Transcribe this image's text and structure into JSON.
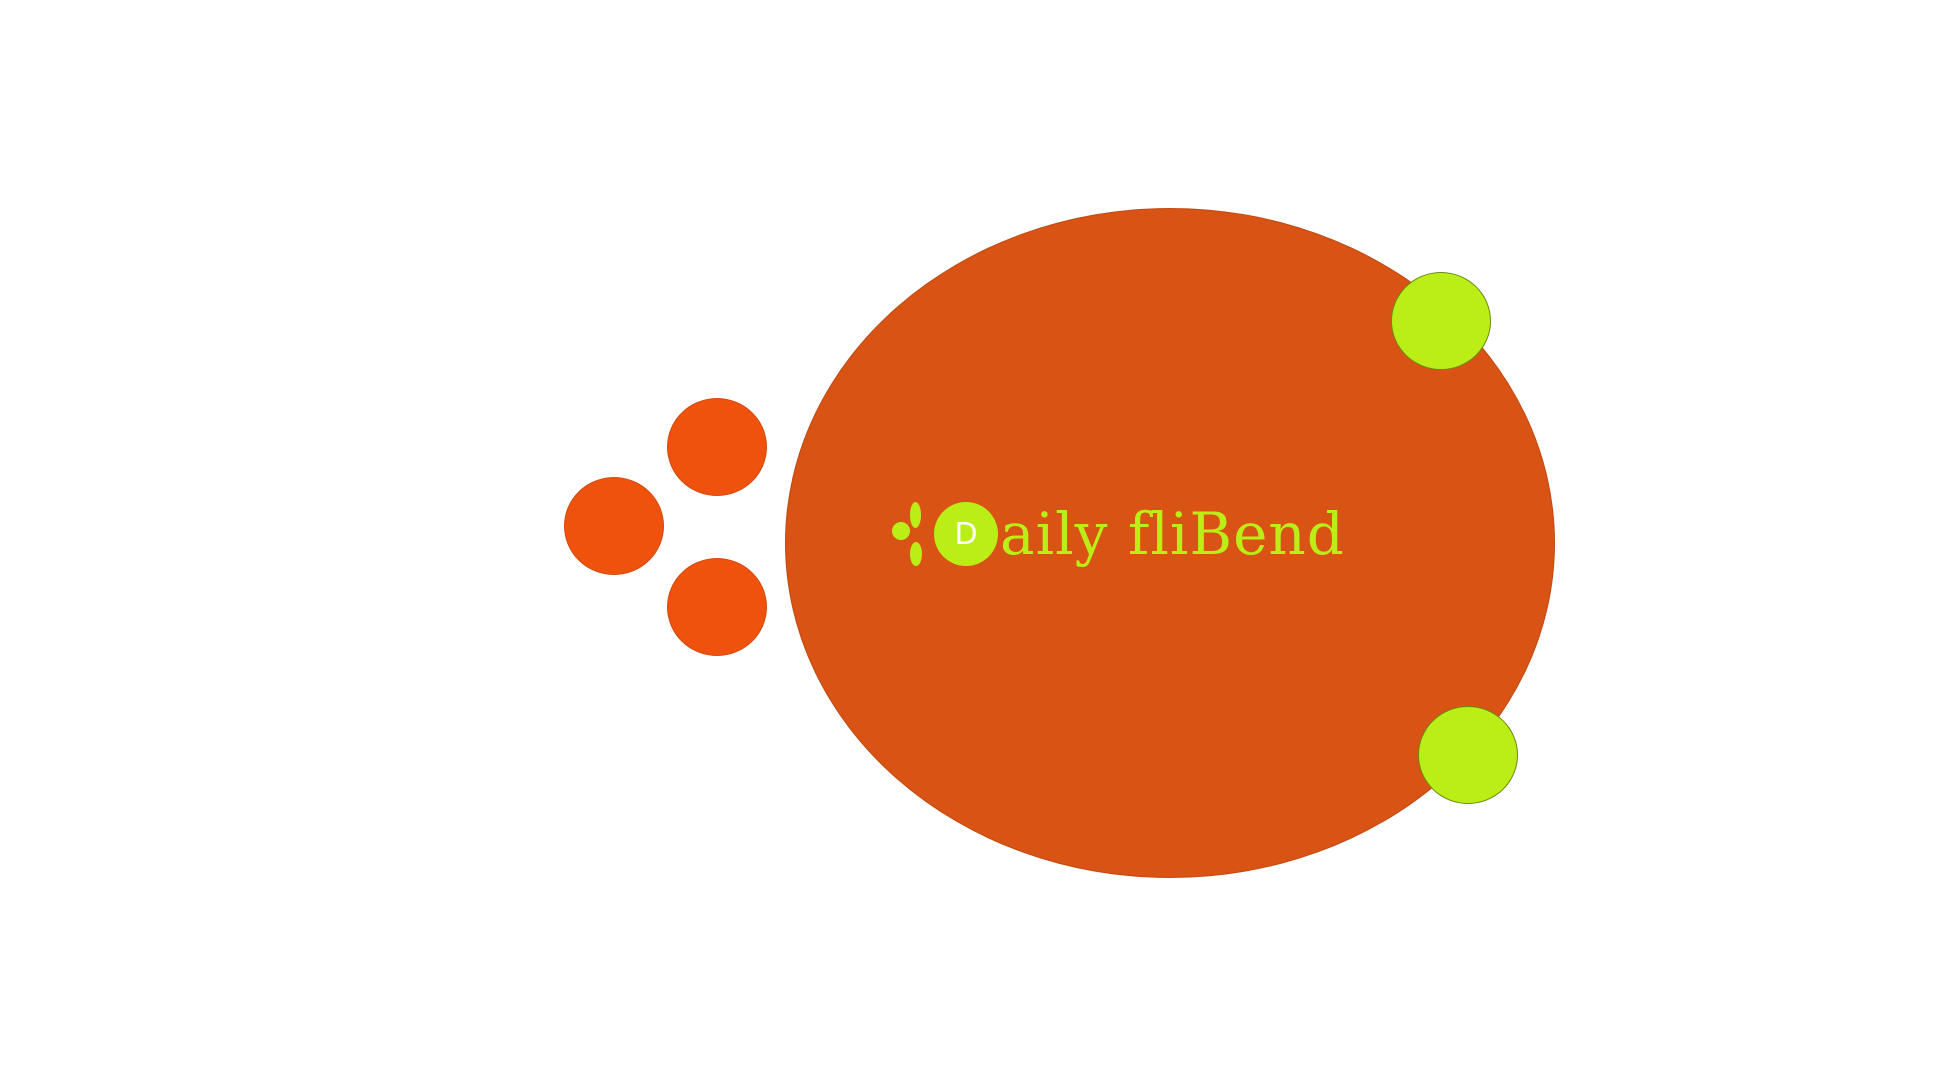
{
  "colors": {
    "background": "#ffffff",
    "main_blob": "#d95314",
    "orange_dot": "#ef520c",
    "green_accent": "#bbee16",
    "badge_letter": "#ffffff"
  },
  "logo": {
    "badge_letter": "D",
    "wordmark": "aily fliBend"
  },
  "decor": {
    "orange_dots": [
      "orange-dot-top",
      "orange-dot-left",
      "orange-dot-bottom"
    ],
    "green_dots": [
      "green-dot-upper-right",
      "green-dot-lower-right"
    ]
  }
}
